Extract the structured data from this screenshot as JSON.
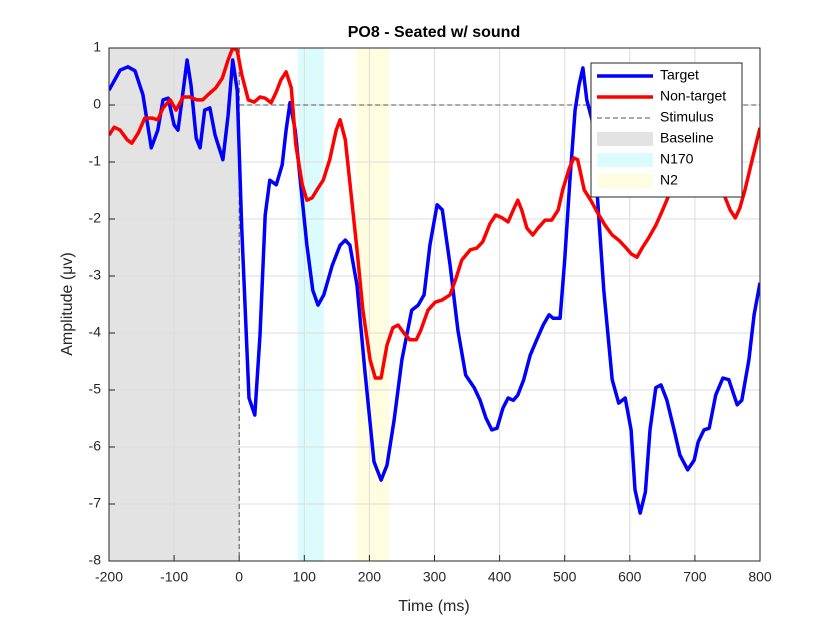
{
  "chart_data": {
    "type": "line",
    "title": "PO8 - Seated w/ sound",
    "x_label": "Time (ms)",
    "y_label": "Amplitude (μv)",
    "xlim": [
      -200,
      800
    ],
    "xticks": [
      -200,
      -100,
      0,
      100,
      200,
      300,
      400,
      500,
      600,
      700,
      800
    ],
    "ylim": [
      -8,
      1
    ],
    "yticks": [
      -8,
      -7,
      -6,
      -5,
      -4,
      -3,
      -2,
      -1,
      0,
      1
    ],
    "grid": true,
    "legend": "northeast",
    "series": [
      {
        "name": "Target",
        "color": "#0000ff",
        "x": [
          -200,
          -183,
          -171,
          -160,
          -148,
          -135,
          -125,
          -117,
          -109,
          -100,
          -94,
          -85,
          -80,
          -74,
          -66,
          -60,
          -53,
          -45,
          -37,
          -25,
          -17,
          -10,
          -3,
          4,
          15,
          24,
          32,
          40,
          47,
          57,
          66,
          72,
          78,
          86,
          97,
          104,
          113,
          121,
          130,
          143,
          155,
          163,
          170,
          181,
          193,
          207,
          218,
          227,
          238,
          250,
          265,
          275,
          284,
          293,
          304,
          312,
          324,
          336,
          348,
          361,
          370,
          379,
          388,
          396,
          405,
          413,
          421,
          428,
          437,
          447,
          457,
          467,
          476,
          482,
          493,
          500,
          508,
          516,
          522,
          528,
          534,
          542,
          550,
          560,
          573,
          583,
          593,
          602,
          608,
          616,
          624,
          631,
          640,
          648,
          657,
          668,
          677,
          689,
          699,
          705,
          714,
          722,
          732,
          743,
          752,
          765,
          772,
          783,
          791,
          800
        ],
        "values": [
          0.26,
          0.61,
          0.67,
          0.6,
          0.18,
          -0.75,
          -0.44,
          0.09,
          0.12,
          -0.35,
          -0.44,
          0.35,
          0.79,
          0.35,
          -0.58,
          -0.75,
          -0.09,
          -0.05,
          -0.53,
          -0.96,
          -0.18,
          0.79,
          0.26,
          -2.19,
          -5.14,
          -5.44,
          -4.04,
          -1.93,
          -1.32,
          -1.4,
          -1.05,
          -0.44,
          0.04,
          -0.44,
          -1.67,
          -2.46,
          -3.25,
          -3.51,
          -3.33,
          -2.81,
          -2.46,
          -2.37,
          -2.46,
          -3.16,
          -4.65,
          -6.26,
          -6.58,
          -6.32,
          -5.53,
          -4.47,
          -3.6,
          -3.51,
          -3.33,
          -2.46,
          -1.75,
          -1.84,
          -2.81,
          -3.95,
          -4.74,
          -4.96,
          -5.18,
          -5.49,
          -5.7,
          -5.67,
          -5.32,
          -5.14,
          -5.18,
          -5.09,
          -4.82,
          -4.39,
          -4.12,
          -3.86,
          -3.68,
          -3.74,
          -3.74,
          -2.72,
          -1.32,
          -0.09,
          0.35,
          0.65,
          0.09,
          -0.26,
          -1.58,
          -3.25,
          -4.82,
          -5.23,
          -5.14,
          -5.7,
          -6.75,
          -7.16,
          -6.79,
          -5.7,
          -4.96,
          -4.91,
          -5.18,
          -5.7,
          -6.14,
          -6.4,
          -6.23,
          -5.91,
          -5.7,
          -5.67,
          -5.09,
          -4.79,
          -4.82,
          -5.26,
          -5.18,
          -4.47,
          -3.68,
          -3.12
        ]
      },
      {
        "name": "Non-target",
        "color": "#ff0000",
        "x": [
          -200,
          -192,
          -183,
          -172,
          -165,
          -155,
          -145,
          -134,
          -125,
          -117,
          -106,
          -97,
          -86,
          -76,
          -65,
          -56,
          -45,
          -36,
          -26,
          -17,
          -10,
          -3,
          4,
          14,
          23,
          32,
          40,
          49,
          57,
          64,
          72,
          80,
          87,
          97,
          104,
          112,
          121,
          129,
          139,
          149,
          155,
          163,
          172,
          181,
          190,
          201,
          209,
          218,
          227,
          236,
          244,
          253,
          262,
          272,
          279,
          290,
          301,
          312,
          324,
          333,
          342,
          355,
          365,
          374,
          385,
          394,
          404,
          413,
          421,
          428,
          434,
          442,
          451,
          459,
          470,
          480,
          490,
          497,
          507,
          514,
          520,
          530,
          540,
          551,
          562,
          573,
          583,
          593,
          602,
          611,
          620,
          629,
          640,
          649,
          659,
          666,
          677,
          700,
          723,
          745,
          754,
          762,
          769,
          777,
          788,
          800
        ],
        "values": [
          -0.53,
          -0.39,
          -0.44,
          -0.61,
          -0.67,
          -0.49,
          -0.23,
          -0.23,
          -0.26,
          -0.05,
          0.09,
          -0.09,
          0.14,
          0.14,
          0.09,
          0.09,
          0.21,
          0.3,
          0.47,
          0.79,
          1,
          0.96,
          0.53,
          0.09,
          0.05,
          0.14,
          0.12,
          0.04,
          0.23,
          0.44,
          0.58,
          0.3,
          -0.7,
          -1.4,
          -1.67,
          -1.63,
          -1.46,
          -1.32,
          -0.96,
          -0.44,
          -0.26,
          -0.61,
          -1.58,
          -2.54,
          -3.6,
          -4.47,
          -4.79,
          -4.79,
          -4.21,
          -3.91,
          -3.86,
          -4,
          -4.12,
          -4.12,
          -3.95,
          -3.6,
          -3.46,
          -3.42,
          -3.33,
          -3.04,
          -2.72,
          -2.54,
          -2.51,
          -2.4,
          -2.09,
          -1.93,
          -1.98,
          -2.05,
          -1.84,
          -1.67,
          -1.84,
          -2.16,
          -2.28,
          -2.16,
          -2.02,
          -2.02,
          -1.84,
          -1.49,
          -1.11,
          -0.93,
          -0.96,
          -1.49,
          -1.67,
          -1.9,
          -2.11,
          -2.28,
          -2.37,
          -2.49,
          -2.61,
          -2.67,
          -2.49,
          -2.33,
          -2.11,
          -1.88,
          -1.61,
          -1.32,
          -1.1,
          -0.9,
          -1.1,
          -1.58,
          -1.84,
          -1.98,
          -1.81,
          -1.49,
          -0.96,
          -0.4
        ]
      }
    ],
    "stimulus": {
      "name": "Stimulus",
      "x": 0,
      "y": 0
    },
    "regions": [
      {
        "name": "Baseline",
        "color": "#e3e3e3",
        "start": -200,
        "end": 0
      },
      {
        "name": "N170",
        "color": "#dcfbfc",
        "start": 90,
        "end": 130
      },
      {
        "name": "N2",
        "color": "#fefde0",
        "start": 180,
        "end": 230
      }
    ]
  }
}
